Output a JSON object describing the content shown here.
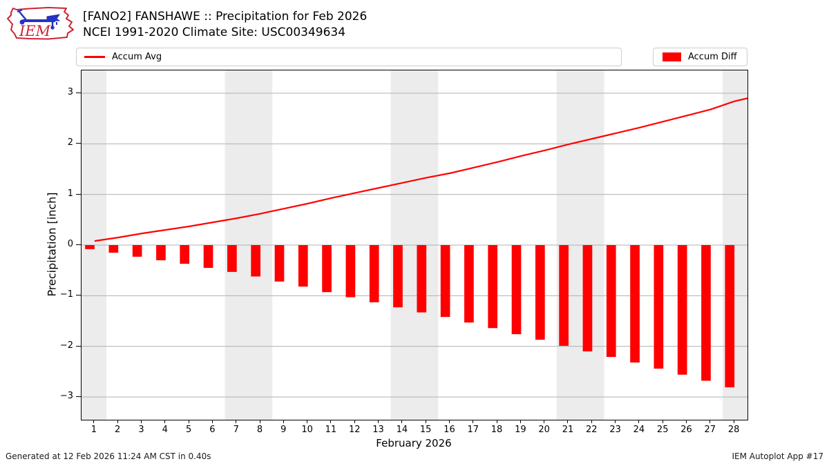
{
  "header": {
    "logo_text": "IEM",
    "title_line1": "[FANO2] FANSHAWE :: Precipitation for Feb 2026",
    "title_line2": "NCEI 1991-2020 Climate Site: USC00349634"
  },
  "legend": {
    "avg_label": "Accum Avg",
    "diff_label": "Accum Diff"
  },
  "chart_data": {
    "type": "bar",
    "title": "[FANO2] FANSHAWE :: Precipitation for Feb 2026",
    "subtitle": "NCEI 1991-2020 Climate Site: USC00349634",
    "xlabel": "February 2026",
    "ylabel": "Precipitation [inch]",
    "categories": [
      1,
      2,
      3,
      4,
      5,
      6,
      7,
      8,
      9,
      10,
      11,
      12,
      13,
      14,
      15,
      16,
      17,
      18,
      19,
      20,
      21,
      22,
      23,
      24,
      25,
      26,
      27,
      28
    ],
    "series": [
      {
        "name": "Accum Avg",
        "type": "line",
        "values": [
          0.08,
          0.15,
          0.23,
          0.3,
          0.37,
          0.45,
          0.53,
          0.62,
          0.72,
          0.82,
          0.93,
          1.03,
          1.13,
          1.23,
          1.33,
          1.42,
          1.53,
          1.64,
          1.76,
          1.87,
          1.99,
          2.1,
          2.21,
          2.32,
          2.44,
          2.56,
          2.68,
          2.84
        ]
      },
      {
        "name": "Accum Diff",
        "type": "bar",
        "values": [
          -0.08,
          -0.15,
          -0.23,
          -0.3,
          -0.37,
          -0.45,
          -0.53,
          -0.62,
          -0.72,
          -0.82,
          -0.93,
          -1.03,
          -1.13,
          -1.23,
          -1.33,
          -1.42,
          -1.53,
          -1.64,
          -1.76,
          -1.87,
          -1.99,
          -2.1,
          -2.21,
          -2.32,
          -2.44,
          -2.56,
          -2.68,
          -2.81
        ]
      }
    ],
    "line_edge_point": {
      "x": 28.55,
      "y": 2.9
    },
    "xlim": [
      0.45,
      28.55
    ],
    "ylim": [
      -3.45,
      3.45
    ],
    "yticks": [
      -3,
      -2,
      -1,
      0,
      1,
      2,
      3
    ],
    "xticks": [
      1,
      2,
      3,
      4,
      5,
      6,
      7,
      8,
      9,
      10,
      11,
      12,
      13,
      14,
      15,
      16,
      17,
      18,
      19,
      20,
      21,
      22,
      23,
      24,
      25,
      26,
      27,
      28
    ],
    "weekend_bands": [
      [
        0.45,
        1.5
      ],
      [
        6.5,
        8.5
      ],
      [
        13.5,
        15.5
      ],
      [
        20.5,
        22.5
      ],
      [
        27.5,
        28.55
      ]
    ],
    "grid": "horizontal",
    "legend_position": "top",
    "colors": {
      "accent": "#ff0000",
      "band": "#ececec",
      "gridline": "#b0b0b0",
      "spine": "#000000",
      "logo_red": "#cf2233",
      "logo_blue": "#2433c0"
    }
  },
  "footer": {
    "generated": "Generated at 12 Feb 2026 11:24 AM CST in 0.40s",
    "app": "IEM Autoplot App #17"
  }
}
